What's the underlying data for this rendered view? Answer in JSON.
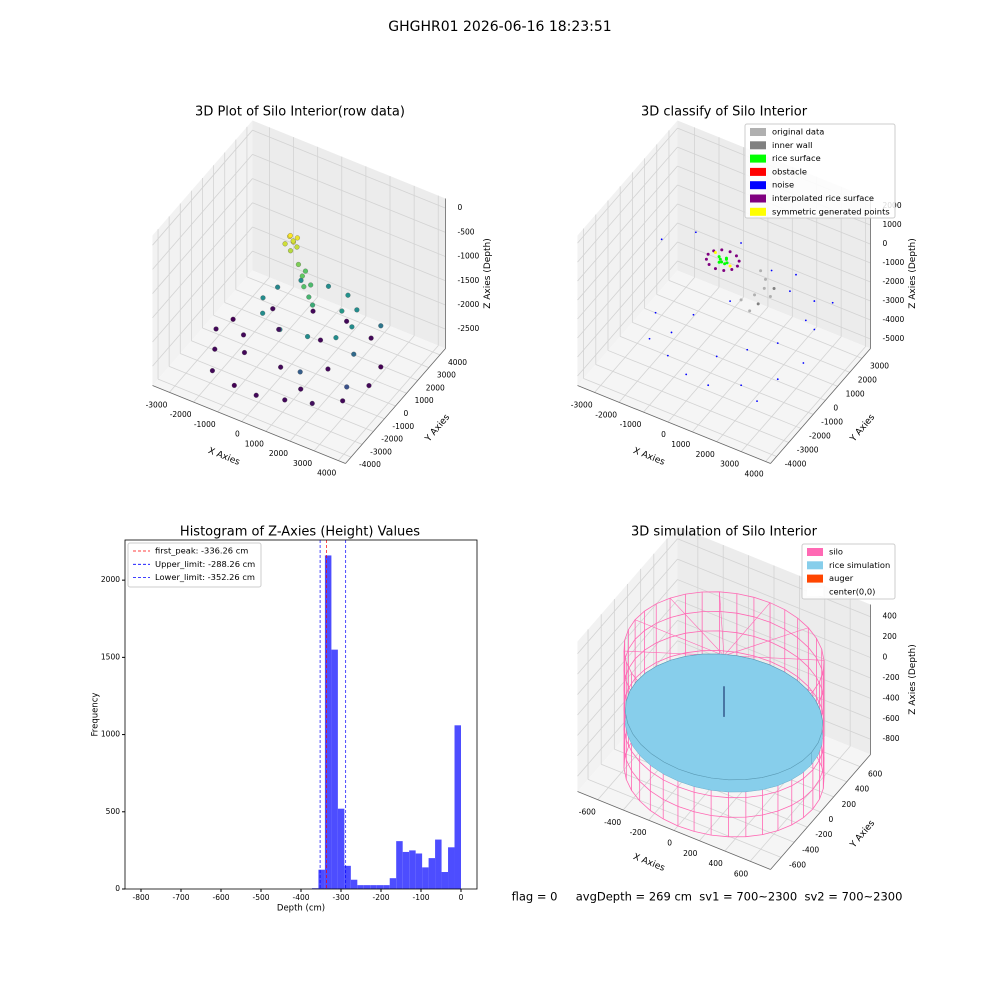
{
  "suptitle": "GHGHR01 2026-06-16 18:23:51",
  "annotation": "flag = 0     avgDepth = 269 cm  sv1 = 700~2300  sv2 = 700~2300",
  "chart_data": [
    {
      "type": "scatter3d",
      "title": "3D Plot of Silo Interior(row data)",
      "xlabel": "X Axies",
      "ylabel": "Y Axies",
      "zlabel": "Z Axies (Depth)",
      "xlim": [
        -3700,
        4300
      ],
      "ylim": [
        -4500,
        4500
      ],
      "zlim": [
        -2900,
        200
      ],
      "xticks": [
        -3000,
        -2000,
        -1000,
        0,
        1000,
        2000,
        3000,
        4000
      ],
      "yticks": [
        -4000,
        -3000,
        -2000,
        -1000,
        0,
        1000,
        2000,
        3000,
        4000
      ],
      "zticks": [
        -2500,
        -2000,
        -1500,
        -1000,
        -500,
        0
      ],
      "cmap": "viridis",
      "points": {
        "x": [
          -500,
          -300,
          -400,
          -600,
          -200,
          -350,
          -450,
          -250,
          0,
          300,
          500,
          800,
          1000,
          200,
          600,
          2400,
          2100,
          1500,
          600,
          -400,
          -1000,
          -1100,
          -700,
          200,
          1300,
          2200,
          1800,
          2800,
          3000,
          1500,
          3200,
          -2500,
          -2000,
          -1000,
          0,
          1000,
          2000,
          2800,
          3200,
          3000,
          2000,
          800,
          -500,
          -1800,
          -2800,
          -3000,
          -1500,
          0,
          1500,
          500,
          -1000,
          -2000,
          1200
        ],
        "y": [
          900,
          800,
          1000,
          700,
          900,
          650,
          850,
          1050,
          600,
          300,
          0,
          -200,
          -300,
          800,
          400,
          200,
          1300,
          1800,
          2000,
          1700,
          900,
          -200,
          -1100,
          -1500,
          -1400,
          -800,
          600,
          -500,
          1500,
          -2500,
          -2000,
          -1500,
          -2800,
          -3000,
          -3200,
          -2800,
          -2500,
          -1500,
          0,
          1500,
          2800,
          3200,
          3000,
          2200,
          800,
          -300,
          -1000,
          -1000,
          0,
          1500,
          1000,
          0,
          -1800
        ],
        "z": [
          -600,
          -650,
          -700,
          -720,
          -760,
          -800,
          -560,
          -620,
          -1000,
          -1100,
          -1200,
          -1300,
          -1400,
          -1150,
          -1250,
          -1700,
          -1700,
          -1650,
          -1700,
          -1700,
          -1750,
          -1700,
          -1700,
          -1750,
          -1700,
          -1700,
          -1600,
          -2000,
          -1900,
          -2100,
          -2200,
          -2700,
          -2700,
          -2750,
          -2700,
          -2700,
          -2650,
          -2700,
          -2700,
          -2750,
          -2700,
          -2700,
          -2700,
          -2700,
          -2750,
          -2700,
          -2700,
          -2700,
          -2700,
          -2700,
          -2650,
          -2700,
          -2700
        ]
      }
    },
    {
      "type": "scatter3d",
      "title": "3D classify of Silo Interior",
      "xlabel": "X Axies",
      "ylabel": "Y Axies",
      "zlabel": "Z Axies (Depth)",
      "xlim": [
        -3700,
        4200
      ],
      "ylim": [
        -4500,
        3700
      ],
      "zlim": [
        -5500,
        2400
      ],
      "xticks": [
        -3000,
        -2000,
        -1000,
        0,
        1000,
        2000,
        3000,
        4000
      ],
      "yticks": [
        -4000,
        -3000,
        -2000,
        -1000,
        0,
        1000,
        2000,
        3000
      ],
      "zticks": [
        -5000,
        -4000,
        -3000,
        -2000,
        -1000,
        0,
        1000,
        2000
      ],
      "legend": "upper right",
      "series": [
        {
          "name": "original data",
          "color": "#b0b0b0",
          "x": [
            1000,
            1300,
            1400,
            1200,
            800,
            1500,
            1800
          ],
          "y": [
            -500,
            0,
            600,
            1100,
            1500,
            -800,
            300
          ],
          "z": [
            -1500,
            -1450,
            -1500,
            -1500,
            -1550,
            -1600,
            -1500
          ]
        },
        {
          "name": "inner wall",
          "color": "#808080",
          "x": [
            1600,
            1700
          ],
          "y": [
            -300,
            800
          ],
          "z": [
            -1550,
            -1500
          ]
        },
        {
          "name": "rice surface",
          "color": "#00ff00",
          "x": [
            -100,
            100,
            0,
            200,
            -200,
            50,
            150,
            -50
          ],
          "y": [
            0,
            100,
            -100,
            -50,
            100,
            200,
            -150,
            -200
          ],
          "z": [
            -300,
            -280,
            -320,
            -300,
            -290,
            -310,
            -300,
            -290
          ]
        },
        {
          "name": "obstacle",
          "color": "#ff0000",
          "x": [],
          "y": [],
          "z": []
        },
        {
          "name": "noise",
          "color": "#0000ff",
          "x": [
            -2000,
            -1000,
            0,
            1000,
            2000,
            3000,
            3300,
            3000,
            2500,
            1500,
            -2500,
            -1500,
            500,
            1500,
            2500,
            3000,
            2000,
            1000,
            -500,
            -2000,
            -3000,
            200,
            -800,
            2800,
            3500
          ],
          "y": [
            -2000,
            -2500,
            -3000,
            -3200,
            -2500,
            -1500,
            0,
            1500,
            2500,
            3000,
            -500,
            -1200,
            -1500,
            -1000,
            -500,
            800,
            1500,
            2000,
            2500,
            1800,
            1000,
            200,
            -800,
            -2800,
            2000
          ],
          "z": [
            -4000,
            -4000,
            -4100,
            -4000,
            -4000,
            -3900,
            -4000,
            -3500,
            -3000,
            -2500,
            -4000,
            -4000,
            -4000,
            -3500,
            -3000,
            -2500,
            -2000,
            -1800,
            -1500,
            -1200,
            -1500,
            -2500,
            -3000,
            -4200,
            -2200
          ]
        },
        {
          "name": "interpolated rice surface",
          "color": "#800080",
          "x": [
            600,
            520,
            300,
            0,
            -300,
            -520,
            -600,
            -520,
            -300,
            0,
            300,
            520
          ],
          "y": [
            0,
            300,
            520,
            600,
            520,
            300,
            0,
            -300,
            -520,
            -600,
            -520,
            -300
          ],
          "z": [
            -300,
            -300,
            -300,
            -300,
            -300,
            -300,
            -300,
            -300,
            -300,
            -300,
            -300,
            -300
          ]
        },
        {
          "name": "symmetric generated points",
          "color": "#ffff00",
          "x": [
            -400,
            400
          ],
          "y": [
            200,
            -200
          ],
          "z": [
            -250,
            -250
          ]
        }
      ]
    },
    {
      "type": "histogram",
      "title": "Histogram of Z-Axies (Height) Values",
      "xlabel": "Depth (cm)",
      "ylabel": "Frequency",
      "color": "#4d4dff",
      "xlim": [
        -840,
        40
      ],
      "ylim": [
        0,
        2260
      ],
      "xticks": [
        -800,
        -700,
        -600,
        -500,
        -400,
        -300,
        -200,
        -100,
        0
      ],
      "yticks": [
        0,
        500,
        1000,
        1500,
        2000
      ],
      "legend": "upper left",
      "bins": [
        -810,
        -793.8,
        -777.6,
        -761.4,
        -745.2,
        -729,
        -712.8,
        -696.6,
        -680.4,
        -664.2,
        -648,
        -631.8,
        -615.6,
        -599.4,
        -583.2,
        -567,
        -550.8,
        -534.6,
        -518.4,
        -502.2,
        -486,
        -469.8,
        -453.6,
        -437.4,
        -421.2,
        -405,
        -388.8,
        -372.6,
        -356.4,
        -340.2,
        -324,
        -307.8,
        -291.6,
        -275.4,
        -259.2,
        -243,
        -226.8,
        -210.6,
        -194.4,
        -178.2,
        -162,
        -145.8,
        -129.6,
        -113.4,
        -97.2,
        -81,
        -64.8,
        -48.6,
        -32.4,
        -16.2,
        0
      ],
      "counts": [
        0,
        0,
        0,
        0,
        0,
        0,
        0,
        0,
        0,
        0,
        0,
        0,
        0,
        0,
        0,
        0,
        0,
        0,
        0,
        0,
        0,
        0,
        0,
        0,
        0,
        0,
        0,
        5,
        125,
        2160,
        1550,
        520,
        150,
        60,
        25,
        25,
        25,
        25,
        25,
        70,
        310,
        240,
        250,
        230,
        140,
        200,
        320,
        110,
        270,
        1060
      ],
      "lines": [
        {
          "name": "first_peak: -336.26 cm",
          "value": -336.26,
          "color": "#ff0000"
        },
        {
          "name": "Upper_limit: -288.26 cm",
          "value": -288.26,
          "color": "#0000ff"
        },
        {
          "name": "Lower_limit: -352.26 cm",
          "value": -352.26,
          "color": "#0000ff"
        }
      ]
    },
    {
      "type": "silo3d",
      "title": "3D simulation of Silo Interior",
      "xlabel": "X Axies",
      "ylabel": "Y Axies",
      "zlabel": "Z Axies (Depth)",
      "xlim": [
        -760,
        760
      ],
      "ylim": [
        -760,
        760
      ],
      "zlim": [
        -950,
        520
      ],
      "xticks": [
        -600,
        -400,
        -200,
        0,
        200,
        400,
        600
      ],
      "yticks": [
        -600,
        -400,
        -200,
        0,
        200,
        400,
        600
      ],
      "zticks": [
        -800,
        -600,
        -400,
        -200,
        0,
        200,
        400
      ],
      "legend": "upper right",
      "silo": {
        "name": "silo",
        "color": "#ff69b4",
        "radius": 700,
        "bottom": -950,
        "top": 200
      },
      "rice": {
        "name": "rice simulation",
        "color": "#87ceeb",
        "radius": 690,
        "z": -400
      },
      "auger": {
        "name": "auger",
        "color": "#ff4500",
        "x": [
          0,
          0
        ],
        "y": [
          0,
          0
        ],
        "z": [
          -400,
          -100
        ]
      },
      "center": {
        "name": "center(0,0)",
        "color": "#ffffff"
      }
    }
  ]
}
